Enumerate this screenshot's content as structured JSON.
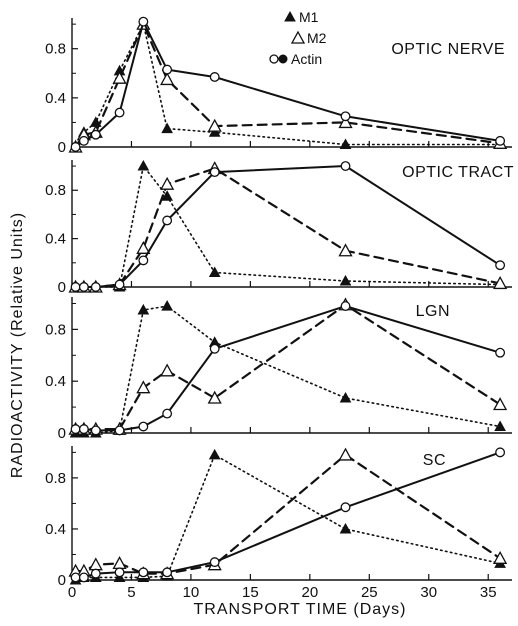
{
  "chart_data": {
    "type": "line",
    "xlabel": "TRANSPORT  TIME (Days)",
    "ylabel": "RADIOACTIVITY  (Relative Units)",
    "xlim": [
      0,
      37
    ],
    "ylim": [
      0,
      1.05
    ],
    "x_ticks": [
      "0",
      "5",
      "10",
      "15",
      "20",
      "25",
      "30",
      "35"
    ],
    "y_ticks": [
      "0",
      "0.4",
      "0.8"
    ],
    "legend": {
      "placement": "top-right",
      "entries": [
        {
          "symbol": "▲",
          "label": "M1"
        },
        {
          "symbol": "△",
          "label": "M2"
        },
        {
          "symbol": "○●",
          "label": "Actin"
        }
      ]
    },
    "series_styles": {
      "M1": {
        "line": "dotted",
        "marker": "filled-triangle"
      },
      "M2": {
        "line": "dashed",
        "marker": "open-triangle"
      },
      "Actin": {
        "line": "solid",
        "marker": "circle"
      }
    },
    "panels": [
      {
        "title": "OPTIC NERVE",
        "series": {
          "M1": [
            [
              0.3,
              0
            ],
            [
              1,
              0.12
            ],
            [
              2,
              0.2
            ],
            [
              4,
              0.62
            ],
            [
              6,
              1.0
            ],
            [
              8,
              0.15
            ],
            [
              12,
              0.12
            ],
            [
              23,
              0.02
            ],
            [
              36,
              0.02
            ]
          ],
          "M2": [
            [
              0.3,
              0
            ],
            [
              1,
              0.1
            ],
            [
              2,
              0.12
            ],
            [
              4,
              0.56
            ],
            [
              6,
              1.0
            ],
            [
              8,
              0.55
            ],
            [
              12,
              0.17
            ],
            [
              23,
              0.2
            ],
            [
              36,
              0.03
            ]
          ],
          "Actin": [
            [
              0.3,
              0
            ],
            [
              1,
              0.05
            ],
            [
              2,
              0.1
            ],
            [
              4,
              0.28
            ],
            [
              6,
              1.02
            ],
            [
              8,
              0.63
            ],
            [
              12,
              0.57
            ],
            [
              23,
              0.25
            ],
            [
              36,
              0.05
            ]
          ]
        }
      },
      {
        "title": "OPTIC TRACT",
        "series": {
          "M1": [
            [
              0.3,
              0
            ],
            [
              1,
              0
            ],
            [
              2,
              0
            ],
            [
              4,
              0
            ],
            [
              6,
              1.0
            ],
            [
              8,
              0.75
            ],
            [
              12,
              0.12
            ],
            [
              23,
              0.05
            ],
            [
              36,
              0.02
            ]
          ],
          "M2": [
            [
              0.3,
              0
            ],
            [
              1,
              0
            ],
            [
              2,
              0
            ],
            [
              4,
              0.02
            ],
            [
              6,
              0.32
            ],
            [
              8,
              0.85
            ],
            [
              12,
              0.98
            ],
            [
              23,
              0.3
            ],
            [
              36,
              0.03
            ]
          ],
          "Actin": [
            [
              0.3,
              0
            ],
            [
              1,
              0
            ],
            [
              2,
              0
            ],
            [
              4,
              0.02
            ],
            [
              6,
              0.22
            ],
            [
              8,
              0.55
            ],
            [
              12,
              0.95
            ],
            [
              23,
              1.0
            ],
            [
              36,
              0.18
            ]
          ]
        }
      },
      {
        "title": "LGN",
        "series": {
          "M1": [
            [
              0.3,
              0
            ],
            [
              1,
              0
            ],
            [
              2,
              0
            ],
            [
              4,
              0.02
            ],
            [
              6,
              0.95
            ],
            [
              8,
              0.98
            ],
            [
              12,
              0.7
            ],
            [
              23,
              0.27
            ],
            [
              36,
              0.05
            ]
          ],
          "M2": [
            [
              0.3,
              0.03
            ],
            [
              1,
              0.03
            ],
            [
              2,
              0.03
            ],
            [
              4,
              0.03
            ],
            [
              6,
              0.35
            ],
            [
              8,
              0.48
            ],
            [
              12,
              0.27
            ],
            [
              23,
              0.99
            ],
            [
              36,
              0.22
            ]
          ],
          "Actin": [
            [
              0.3,
              0.03
            ],
            [
              1,
              0.03
            ],
            [
              2,
              0.02
            ],
            [
              4,
              0.02
            ],
            [
              6,
              0.05
            ],
            [
              8,
              0.15
            ],
            [
              12,
              0.65
            ],
            [
              23,
              0.98
            ],
            [
              36,
              0.62
            ]
          ]
        }
      },
      {
        "title": "SC",
        "series": {
          "M1": [
            [
              0.3,
              0
            ],
            [
              1,
              0.02
            ],
            [
              2,
              0.02
            ],
            [
              4,
              0.02
            ],
            [
              6,
              0.02
            ],
            [
              8,
              0.03
            ],
            [
              12,
              0.98
            ],
            [
              23,
              0.4
            ],
            [
              36,
              0.13
            ]
          ],
          "M2": [
            [
              0.3,
              0.07
            ],
            [
              1,
              0.07
            ],
            [
              2,
              0.12
            ],
            [
              4,
              0.13
            ],
            [
              6,
              0.05
            ],
            [
              8,
              0.05
            ],
            [
              12,
              0.12
            ],
            [
              23,
              0.98
            ],
            [
              36,
              0.17
            ]
          ],
          "Actin": [
            [
              0.3,
              0.02
            ],
            [
              1,
              0.02
            ],
            [
              2,
              0.05
            ],
            [
              4,
              0.06
            ],
            [
              6,
              0.06
            ],
            [
              8,
              0.06
            ],
            [
              12,
              0.14
            ],
            [
              23,
              0.57
            ],
            [
              36,
              1.0
            ]
          ]
        }
      }
    ]
  }
}
